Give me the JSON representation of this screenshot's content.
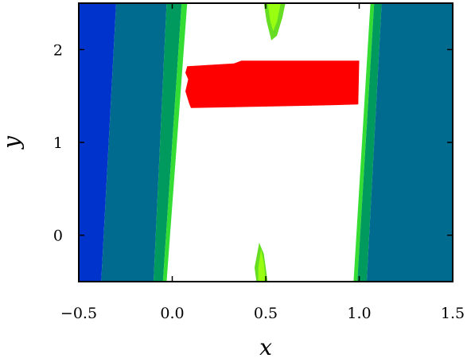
{
  "chart_data": {
    "type": "contour",
    "xlabel": "x",
    "ylabel": "y",
    "xlim": [
      -0.5,
      1.5
    ],
    "ylim": [
      -0.5,
      2.5
    ],
    "xticks": [
      -0.5,
      0.0,
      0.5,
      1.0,
      1.5
    ],
    "xtick_labels": [
      "−0.5",
      "0.0",
      "0.5",
      "1.0",
      "1.5"
    ],
    "yticks": [
      0,
      1,
      2
    ],
    "ytick_labels": [
      "0",
      "1",
      "2"
    ],
    "grid": false,
    "legend": null,
    "regions": [
      {
        "name": "band-left-outer",
        "color": "#0033cc",
        "polygon": [
          [
            -0.5,
            -0.5
          ],
          [
            -0.38,
            -0.5
          ],
          [
            -0.3,
            2.5
          ],
          [
            -0.5,
            2.5
          ]
        ]
      },
      {
        "name": "band-left-mid",
        "color": "#006b8f",
        "polygon": [
          [
            -0.38,
            -0.5
          ],
          [
            -0.1,
            -0.5
          ],
          [
            -0.03,
            2.5
          ],
          [
            -0.3,
            2.5
          ]
        ]
      },
      {
        "name": "band-left-teal",
        "color": "#00995e",
        "polygon": [
          [
            -0.1,
            -0.5
          ],
          [
            -0.05,
            -0.5
          ],
          [
            0.05,
            2.5
          ],
          [
            -0.03,
            2.5
          ]
        ]
      },
      {
        "name": "band-left-green",
        "color": "#33dd33",
        "polygon": [
          [
            -0.05,
            -0.5
          ],
          [
            -0.03,
            -0.5
          ],
          [
            0.08,
            2.5
          ],
          [
            0.05,
            2.5
          ]
        ]
      },
      {
        "name": "band-right-green",
        "color": "#33dd33",
        "polygon": [
          [
            0.97,
            -0.5
          ],
          [
            0.99,
            -0.5
          ],
          [
            1.08,
            2.5
          ],
          [
            1.06,
            2.5
          ]
        ]
      },
      {
        "name": "band-right-teal",
        "color": "#00995e",
        "polygon": [
          [
            0.99,
            -0.5
          ],
          [
            1.04,
            -0.5
          ],
          [
            1.12,
            2.5
          ],
          [
            1.08,
            2.5
          ]
        ]
      },
      {
        "name": "band-right-mid",
        "color": "#006b8f",
        "polygon": [
          [
            1.04,
            -0.5
          ],
          [
            1.5,
            -0.5
          ],
          [
            1.5,
            2.5
          ],
          [
            1.12,
            2.5
          ]
        ]
      },
      {
        "name": "blob-top-outer",
        "color": "#66dd22",
        "polygon": [
          [
            0.49,
            2.5
          ],
          [
            0.505,
            2.3
          ],
          [
            0.53,
            2.1
          ],
          [
            0.56,
            2.15
          ],
          [
            0.59,
            2.35
          ],
          [
            0.605,
            2.5
          ]
        ]
      },
      {
        "name": "blob-top-inner",
        "color": "#99ff11",
        "polygon": [
          [
            0.51,
            2.5
          ],
          [
            0.525,
            2.3
          ],
          [
            0.54,
            2.2
          ],
          [
            0.56,
            2.3
          ],
          [
            0.58,
            2.5
          ]
        ]
      },
      {
        "name": "blob-bottom-outer",
        "color": "#66dd22",
        "polygon": [
          [
            0.45,
            -0.5
          ],
          [
            0.44,
            -0.35
          ],
          [
            0.465,
            -0.08
          ],
          [
            0.49,
            -0.2
          ],
          [
            0.51,
            -0.5
          ]
        ]
      },
      {
        "name": "blob-bottom-inner",
        "color": "#99ff11",
        "polygon": [
          [
            0.46,
            -0.5
          ],
          [
            0.46,
            -0.35
          ],
          [
            0.475,
            -0.15
          ],
          [
            0.49,
            -0.3
          ],
          [
            0.5,
            -0.5
          ]
        ]
      },
      {
        "name": "red-region",
        "color": "#ff0000",
        "polygon": [
          [
            0.08,
            1.82
          ],
          [
            0.33,
            1.85
          ],
          [
            0.37,
            1.88
          ],
          [
            1.0,
            1.88
          ],
          [
            0.995,
            1.41
          ],
          [
            0.85,
            1.4
          ],
          [
            0.1,
            1.37
          ],
          [
            0.09,
            1.42
          ],
          [
            0.07,
            1.55
          ],
          [
            0.085,
            1.68
          ],
          [
            0.07,
            1.75
          ]
        ]
      }
    ]
  }
}
